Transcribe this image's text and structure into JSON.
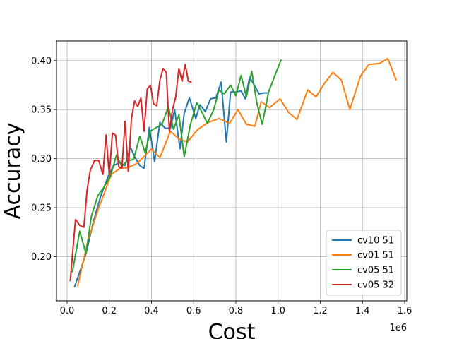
{
  "chart_data": {
    "type": "line",
    "title": "",
    "xlabel": "Cost",
    "ylabel": "Accuracy",
    "x_scale_label": "1e6",
    "xlim": [
      -50000,
      1610000
    ],
    "ylim": [
      0.155,
      0.42
    ],
    "xticks": [
      0,
      0.2,
      0.4,
      0.6,
      0.8,
      1.0,
      1.2,
      1.4,
      1.6
    ],
    "xtick_labels": [
      "0.0",
      "0.2",
      "0.4",
      "0.6",
      "0.8",
      "1.0",
      "1.2",
      "1.4",
      "1.6"
    ],
    "yticks": [
      0.2,
      0.25,
      0.3,
      0.35,
      0.4
    ],
    "ytick_labels": [
      "0.20",
      "0.25",
      "0.30",
      "0.35",
      "0.40"
    ],
    "grid": true,
    "legend_position": "lower-right",
    "series": [
      {
        "name": "cv10 51",
        "color": "#1f77b4",
        "x": [
          35000,
          90000,
          125000,
          160000,
          195000,
          220000,
          250000,
          275000,
          300000,
          320000,
          345000,
          365000,
          390000,
          415000,
          440000,
          465000,
          490000,
          510000,
          535000,
          555000,
          580000,
          610000,
          630000,
          655000,
          680000,
          705000,
          730000,
          755000,
          775000,
          800000,
          825000,
          845000,
          865000,
          890000,
          910000,
          930000,
          950000
        ],
        "y": [
          0.169,
          0.203,
          0.236,
          0.262,
          0.282,
          0.293,
          0.296,
          0.293,
          0.312,
          0.302,
          0.293,
          0.29,
          0.332,
          0.297,
          0.337,
          0.331,
          0.331,
          0.35,
          0.31,
          0.346,
          0.362,
          0.341,
          0.355,
          0.348,
          0.361,
          0.362,
          0.378,
          0.317,
          0.368,
          0.368,
          0.369,
          0.361,
          0.383,
          0.374,
          0.366,
          0.367,
          0.367
        ]
      },
      {
        "name": "cv01 51",
        "color": "#ff7f0e",
        "x": [
          50000,
          100000,
          150000,
          210000,
          250000,
          290000,
          330000,
          360000,
          400000,
          440000,
          490000,
          530000,
          570000,
          620000,
          670000,
          720000,
          770000,
          810000,
          850000,
          890000,
          920000,
          960000,
          1010000,
          1050000,
          1090000,
          1140000,
          1180000,
          1220000,
          1260000,
          1300000,
          1340000,
          1390000,
          1430000,
          1480000,
          1520000,
          1560000
        ],
        "y": [
          0.17,
          0.217,
          0.25,
          0.284,
          0.29,
          0.291,
          0.295,
          0.301,
          0.31,
          0.301,
          0.328,
          0.32,
          0.317,
          0.33,
          0.337,
          0.341,
          0.336,
          0.35,
          0.335,
          0.333,
          0.358,
          0.352,
          0.361,
          0.347,
          0.34,
          0.37,
          0.363,
          0.377,
          0.388,
          0.38,
          0.35,
          0.384,
          0.396,
          0.397,
          0.402,
          0.38
        ]
      },
      {
        "name": "cv05 51",
        "color": "#2ca02c",
        "x": [
          25000,
          60000,
          90000,
          115000,
          145000,
          175000,
          205000,
          235000,
          260000,
          285000,
          315000,
          345000,
          370000,
          395000,
          425000,
          450000,
          480000,
          505000,
          530000,
          555000,
          585000,
          615000,
          640000,
          665000,
          695000,
          720000,
          745000,
          775000,
          800000,
          825000,
          850000,
          875000,
          900000,
          925000,
          955000,
          985000,
          1015000
        ],
        "y": [
          0.184,
          0.226,
          0.203,
          0.241,
          0.262,
          0.271,
          0.282,
          0.304,
          0.292,
          0.298,
          0.299,
          0.323,
          0.306,
          0.328,
          0.332,
          0.335,
          0.353,
          0.33,
          0.345,
          0.302,
          0.335,
          0.357,
          0.347,
          0.336,
          0.35,
          0.37,
          0.366,
          0.375,
          0.364,
          0.385,
          0.363,
          0.389,
          0.356,
          0.335,
          0.368,
          0.385,
          0.401
        ]
      },
      {
        "name": "cv05 32",
        "color": "#d62728",
        "x": [
          15000,
          40000,
          60000,
          80000,
          95000,
          110000,
          130000,
          150000,
          170000,
          185000,
          200000,
          215000,
          230000,
          245000,
          260000,
          275000,
          290000,
          305000,
          320000,
          335000,
          350000,
          365000,
          380000,
          395000,
          410000,
          425000,
          440000,
          455000,
          470000,
          485000,
          500000,
          515000,
          530000,
          545000,
          560000,
          575000,
          590000
        ],
        "y": [
          0.175,
          0.238,
          0.232,
          0.23,
          0.268,
          0.288,
          0.298,
          0.298,
          0.284,
          0.324,
          0.283,
          0.326,
          0.324,
          0.292,
          0.29,
          0.338,
          0.287,
          0.341,
          0.359,
          0.353,
          0.362,
          0.328,
          0.371,
          0.375,
          0.356,
          0.354,
          0.38,
          0.392,
          0.388,
          0.328,
          0.35,
          0.363,
          0.392,
          0.379,
          0.396,
          0.379,
          0.378
        ]
      }
    ]
  }
}
